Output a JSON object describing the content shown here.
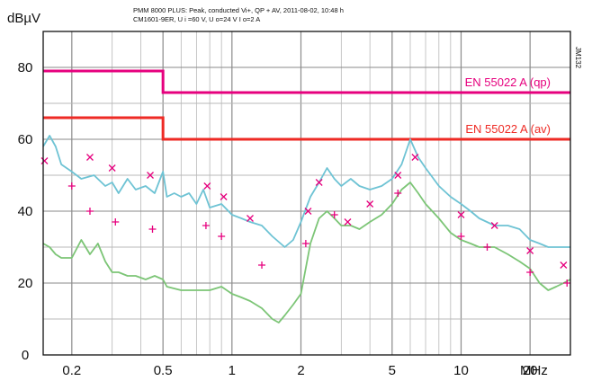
{
  "chart_data": {
    "type": "line",
    "title_line1": "PMM 8000 PLUS: Peak, conducted Vi+, QP + AV, 2011-08-02, 10:48 h",
    "title_line2": "CM1601-9ER, U  i =60 V, U   o=24 V I   o=2 A",
    "ylabel": "dBµV",
    "xunit": "MHz",
    "side_label": "JM132",
    "x_scale": "log",
    "xlim": [
      0.15,
      30
    ],
    "ylim": [
      0,
      90
    ],
    "y_ticks": [
      0,
      20,
      40,
      60,
      80
    ],
    "x_ticks": [
      {
        "value": 0.2,
        "label": "0.2"
      },
      {
        "value": 0.5,
        "label": "0.5"
      },
      {
        "value": 1,
        "label": "1"
      },
      {
        "value": 2,
        "label": "2"
      },
      {
        "value": 5,
        "label": "5"
      },
      {
        "value": 10,
        "label": "10"
      },
      {
        "value": 20,
        "label": "20"
      }
    ],
    "grid": true,
    "limits": [
      {
        "name": "EN 55022 A (qp)",
        "color": "#e6007e",
        "points": [
          [
            0.15,
            79
          ],
          [
            0.5,
            79
          ],
          [
            0.5,
            73
          ],
          [
            30,
            73
          ]
        ]
      },
      {
        "name": "EN 55022 A (av)",
        "color": "#ee2a24",
        "points": [
          [
            0.15,
            66
          ],
          [
            0.5,
            66
          ],
          [
            0.5,
            60
          ],
          [
            30,
            60
          ]
        ]
      }
    ],
    "series": [
      {
        "color": "#6ec3d4",
        "points": [
          [
            0.15,
            58
          ],
          [
            0.16,
            61
          ],
          [
            0.17,
            58
          ],
          [
            0.18,
            53
          ],
          [
            0.2,
            51
          ],
          [
            0.22,
            49
          ],
          [
            0.25,
            50
          ],
          [
            0.28,
            47
          ],
          [
            0.3,
            48
          ],
          [
            0.32,
            45
          ],
          [
            0.35,
            49
          ],
          [
            0.38,
            46
          ],
          [
            0.42,
            47
          ],
          [
            0.46,
            45
          ],
          [
            0.5,
            51
          ],
          [
            0.52,
            44
          ],
          [
            0.56,
            45
          ],
          [
            0.6,
            44
          ],
          [
            0.65,
            45
          ],
          [
            0.7,
            42
          ],
          [
            0.75,
            46
          ],
          [
            0.8,
            41
          ],
          [
            0.9,
            42
          ],
          [
            1.0,
            39
          ],
          [
            1.1,
            38
          ],
          [
            1.2,
            37
          ],
          [
            1.35,
            36
          ],
          [
            1.5,
            33
          ],
          [
            1.7,
            30
          ],
          [
            1.85,
            32
          ],
          [
            2.0,
            37
          ],
          [
            2.2,
            44
          ],
          [
            2.4,
            48
          ],
          [
            2.6,
            52
          ],
          [
            2.8,
            49
          ],
          [
            3.0,
            47
          ],
          [
            3.3,
            49
          ],
          [
            3.6,
            47
          ],
          [
            4.0,
            46
          ],
          [
            4.5,
            47
          ],
          [
            5.0,
            49
          ],
          [
            5.5,
            53
          ],
          [
            6.0,
            60
          ],
          [
            6.5,
            55
          ],
          [
            7.0,
            52
          ],
          [
            8.0,
            47
          ],
          [
            9.0,
            44
          ],
          [
            10,
            42
          ],
          [
            11,
            40
          ],
          [
            12,
            38
          ],
          [
            14,
            36
          ],
          [
            16,
            36
          ],
          [
            18,
            35
          ],
          [
            20,
            32
          ],
          [
            22,
            31
          ],
          [
            24,
            30
          ],
          [
            26,
            30
          ],
          [
            28,
            30
          ],
          [
            30,
            30
          ]
        ]
      },
      {
        "color": "#7cc576",
        "points": [
          [
            0.15,
            31
          ],
          [
            0.16,
            30
          ],
          [
            0.17,
            28
          ],
          [
            0.18,
            27
          ],
          [
            0.2,
            27
          ],
          [
            0.22,
            32
          ],
          [
            0.24,
            28
          ],
          [
            0.26,
            31
          ],
          [
            0.28,
            26
          ],
          [
            0.3,
            23
          ],
          [
            0.32,
            23
          ],
          [
            0.35,
            22
          ],
          [
            0.38,
            22
          ],
          [
            0.42,
            21
          ],
          [
            0.46,
            22
          ],
          [
            0.5,
            21
          ],
          [
            0.52,
            19
          ],
          [
            0.6,
            18
          ],
          [
            0.7,
            18
          ],
          [
            0.8,
            18
          ],
          [
            0.9,
            19
          ],
          [
            1.0,
            17
          ],
          [
            1.1,
            16
          ],
          [
            1.2,
            15
          ],
          [
            1.35,
            13
          ],
          [
            1.5,
            10
          ],
          [
            1.6,
            9
          ],
          [
            1.7,
            11
          ],
          [
            1.85,
            14
          ],
          [
            2.0,
            17
          ],
          [
            2.2,
            31
          ],
          [
            2.4,
            38
          ],
          [
            2.6,
            40
          ],
          [
            2.8,
            38
          ],
          [
            3.0,
            36
          ],
          [
            3.3,
            36
          ],
          [
            3.6,
            35
          ],
          [
            4.0,
            37
          ],
          [
            4.5,
            39
          ],
          [
            5.0,
            42
          ],
          [
            5.5,
            46
          ],
          [
            6.0,
            48
          ],
          [
            6.5,
            45
          ],
          [
            7.0,
            42
          ],
          [
            8.0,
            38
          ],
          [
            9.0,
            34
          ],
          [
            10,
            32
          ],
          [
            11,
            31
          ],
          [
            12,
            30
          ],
          [
            14,
            30
          ],
          [
            16,
            28
          ],
          [
            18,
            26
          ],
          [
            20,
            24
          ],
          [
            22,
            20
          ],
          [
            24,
            18
          ],
          [
            26,
            19
          ],
          [
            28,
            20
          ],
          [
            30,
            21
          ]
        ]
      }
    ],
    "markers": [
      {
        "x": 0.152,
        "y": 54,
        "kind": "x"
      },
      {
        "x": 0.2,
        "y": 47,
        "kind": "+"
      },
      {
        "x": 0.24,
        "y": 55,
        "kind": "x"
      },
      {
        "x": 0.24,
        "y": 40,
        "kind": "+"
      },
      {
        "x": 0.3,
        "y": 52,
        "kind": "x"
      },
      {
        "x": 0.31,
        "y": 37,
        "kind": "+"
      },
      {
        "x": 0.44,
        "y": 50,
        "kind": "x"
      },
      {
        "x": 0.45,
        "y": 35,
        "kind": "+"
      },
      {
        "x": 0.78,
        "y": 47,
        "kind": "x"
      },
      {
        "x": 0.77,
        "y": 36,
        "kind": "+"
      },
      {
        "x": 0.92,
        "y": 44,
        "kind": "x"
      },
      {
        "x": 0.9,
        "y": 33,
        "kind": "+"
      },
      {
        "x": 1.2,
        "y": 38,
        "kind": "x"
      },
      {
        "x": 1.35,
        "y": 25,
        "kind": "+"
      },
      {
        "x": 2.15,
        "y": 40,
        "kind": "x"
      },
      {
        "x": 2.1,
        "y": 31,
        "kind": "+"
      },
      {
        "x": 2.4,
        "y": 48,
        "kind": "x"
      },
      {
        "x": 2.8,
        "y": 39,
        "kind": "+"
      },
      {
        "x": 3.2,
        "y": 37,
        "kind": "x"
      },
      {
        "x": 4.0,
        "y": 42,
        "kind": "x"
      },
      {
        "x": 5.3,
        "y": 50,
        "kind": "x"
      },
      {
        "x": 5.3,
        "y": 45,
        "kind": "+"
      },
      {
        "x": 6.3,
        "y": 55,
        "kind": "x"
      },
      {
        "x": 10,
        "y": 39,
        "kind": "x"
      },
      {
        "x": 10,
        "y": 33,
        "kind": "+"
      },
      {
        "x": 14,
        "y": 36,
        "kind": "x"
      },
      {
        "x": 13,
        "y": 30,
        "kind": "+"
      },
      {
        "x": 20,
        "y": 29,
        "kind": "x"
      },
      {
        "x": 20,
        "y": 23,
        "kind": "+"
      },
      {
        "x": 28,
        "y": 25,
        "kind": "x"
      },
      {
        "x": 29,
        "y": 20,
        "kind": "+"
      }
    ]
  }
}
